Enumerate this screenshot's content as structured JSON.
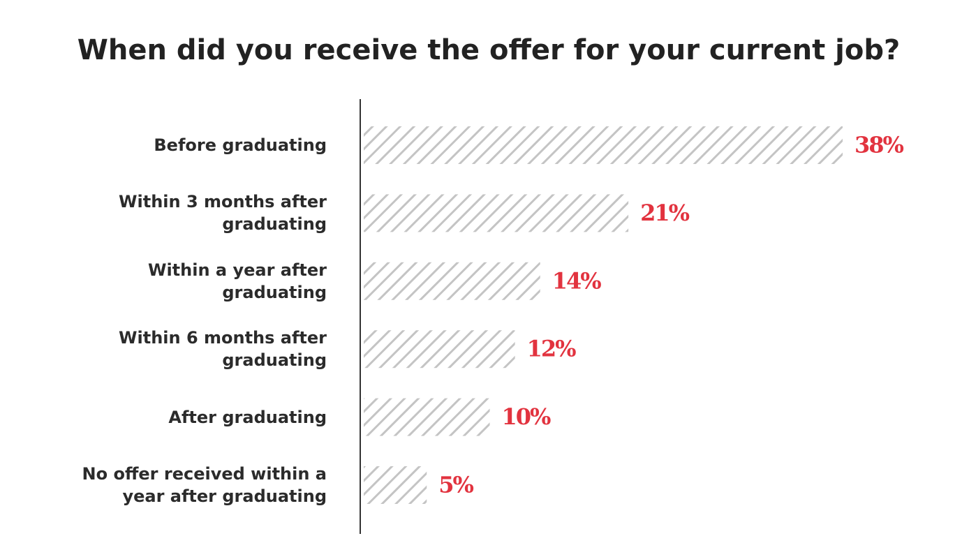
{
  "chart_data": {
    "type": "bar",
    "orientation": "horizontal",
    "title": "When did you receive the offer for your current job?",
    "categories": [
      "Before graduating",
      "Within 3 months after graduating",
      "Within a year after graduating",
      "Within 6 months after graduating",
      "After graduating",
      "No offer received within a year after graduating"
    ],
    "values": [
      38,
      21,
      14,
      12,
      10,
      5
    ],
    "value_labels": [
      "38%",
      "21%",
      "14%",
      "12%",
      "10%",
      "5%"
    ],
    "color": "#c4c4c4",
    "label_color": "#e2333f"
  }
}
